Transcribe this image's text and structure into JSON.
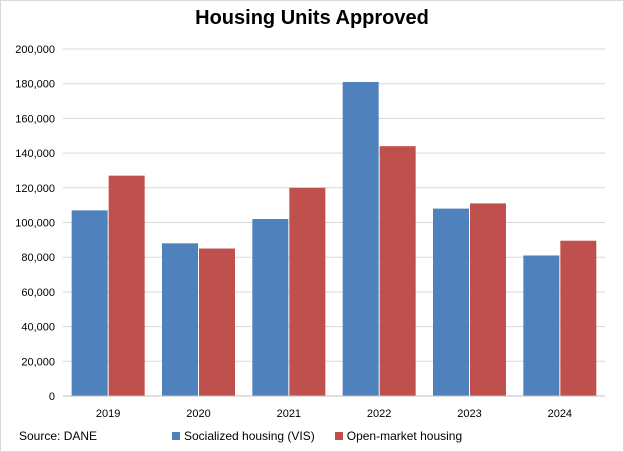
{
  "chart_data": {
    "type": "bar",
    "title": "Housing Units Approved",
    "categories": [
      "2019",
      "2020",
      "2021",
      "2022",
      "2023",
      "2024"
    ],
    "series": [
      {
        "name": "Socialized housing (VIS)",
        "values": [
          107000,
          88000,
          102000,
          181000,
          108000,
          81000
        ],
        "color": "#4f81bd"
      },
      {
        "name": "Open-market housing",
        "values": [
          127000,
          85000,
          120000,
          144000,
          111000,
          89500
        ],
        "color": "#c0504d"
      }
    ],
    "ylim": [
      0,
      200000
    ],
    "yticks": [
      "0",
      "20,000",
      "40,000",
      "60,000",
      "80,000",
      "100,000",
      "120,000",
      "140,000",
      "160,000",
      "180,000",
      "200,000"
    ],
    "grid": true,
    "legend_position": "bottom",
    "source": "Source: DANE"
  }
}
